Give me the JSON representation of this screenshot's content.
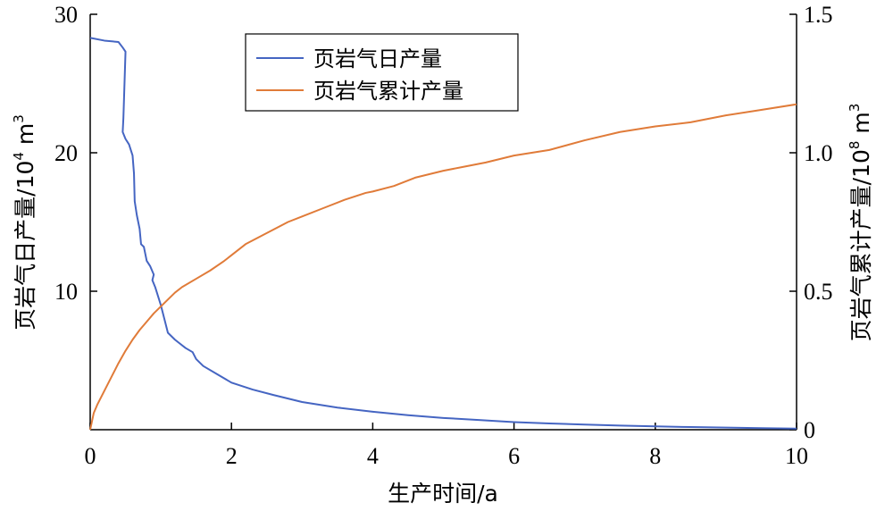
{
  "chart_data": {
    "type": "line",
    "xlabel": "生产时间/a",
    "ylabel_left_main": "页岩气日产量/10",
    "ylabel_left_exp": "4",
    "ylabel_left_unit": " m",
    "ylabel_left_unit_exp": "3",
    "ylabel_right_main": "页岩气累计产量/10",
    "ylabel_right_exp": "8",
    "ylabel_right_unit": " m",
    "ylabel_right_unit_exp": "3",
    "xlim": [
      0,
      10
    ],
    "ylim_left": [
      0,
      30
    ],
    "ylim_right": [
      0,
      1.5
    ],
    "x_ticks": [
      "0",
      "2",
      "4",
      "6",
      "8",
      "10"
    ],
    "y_left_ticks": [
      "10",
      "20",
      "30"
    ],
    "y_right_ticks": [
      "0",
      "0.5",
      "1.0",
      "1.5"
    ],
    "grid": false,
    "legend_position": "top-left",
    "series": [
      {
        "name": "页岩气日产量",
        "axis": "left",
        "color": "#4565c2",
        "x": [
          0,
          0.2,
          0.4,
          0.46,
          0.5,
          0.47,
          0.46,
          0.5,
          0.55,
          0.6,
          0.62,
          0.63,
          0.66,
          0.7,
          0.72,
          0.76,
          0.8,
          0.85,
          0.9,
          0.88,
          0.92,
          1.0,
          1.05,
          1.1,
          1.2,
          1.25,
          1.35,
          1.45,
          1.5,
          1.6,
          1.8,
          2.0,
          2.3,
          2.6,
          3.0,
          3.5,
          4.0,
          4.5,
          5.0,
          5.5,
          6.0,
          6.5,
          7.0,
          7.5,
          8.0,
          8.5,
          9.0,
          9.5,
          10.0
        ],
        "y": [
          28.3,
          28.1,
          28.0,
          27.6,
          27.3,
          22.5,
          21.5,
          21.0,
          20.6,
          19.8,
          18.5,
          16.5,
          15.5,
          14.5,
          13.4,
          13.2,
          12.2,
          11.8,
          11.2,
          10.8,
          10.3,
          9.0,
          8.0,
          7.0,
          6.5,
          6.3,
          5.9,
          5.6,
          5.1,
          4.6,
          4.0,
          3.4,
          2.9,
          2.5,
          2.0,
          1.6,
          1.3,
          1.05,
          0.85,
          0.7,
          0.55,
          0.45,
          0.37,
          0.3,
          0.24,
          0.19,
          0.15,
          0.11,
          0.08
        ]
      },
      {
        "name": "页岩气累计产量",
        "axis": "right",
        "color": "#e07b39",
        "x": [
          0,
          0.05,
          0.1,
          0.2,
          0.3,
          0.4,
          0.5,
          0.6,
          0.7,
          0.8,
          0.9,
          1.0,
          1.1,
          1.2,
          1.3,
          1.5,
          1.7,
          1.9,
          2.0,
          2.2,
          2.5,
          2.8,
          3.0,
          3.3,
          3.6,
          3.9,
          4.0,
          4.3,
          4.6,
          5.0,
          5.3,
          5.6,
          6.0,
          6.5,
          7.0,
          7.5,
          8.0,
          8.5,
          9.0,
          9.5,
          10.0
        ],
        "y": [
          0,
          0.06,
          0.09,
          0.14,
          0.19,
          0.24,
          0.285,
          0.325,
          0.36,
          0.39,
          0.42,
          0.445,
          0.47,
          0.495,
          0.515,
          0.545,
          0.575,
          0.61,
          0.63,
          0.67,
          0.71,
          0.75,
          0.77,
          0.8,
          0.83,
          0.855,
          0.86,
          0.88,
          0.91,
          0.935,
          0.95,
          0.965,
          0.99,
          1.01,
          1.045,
          1.075,
          1.095,
          1.11,
          1.135,
          1.155,
          1.175
        ]
      }
    ]
  }
}
